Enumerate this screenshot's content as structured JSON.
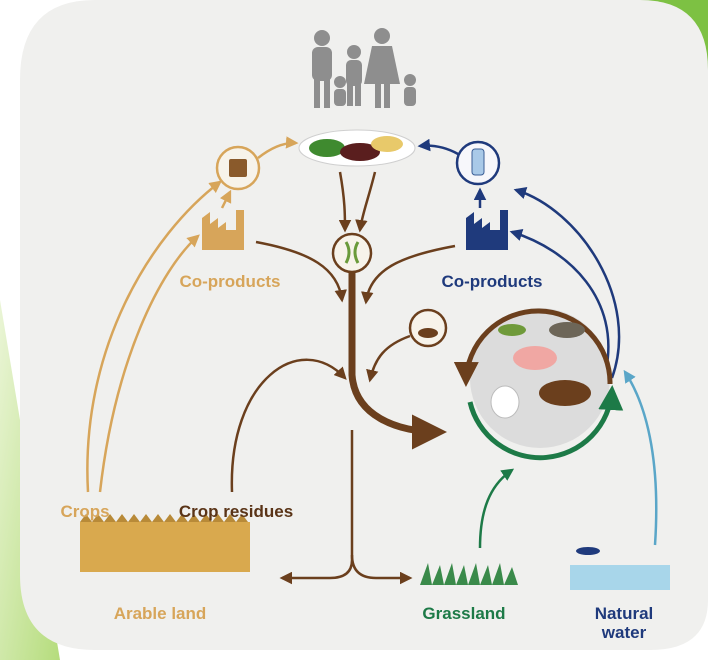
{
  "diagram": {
    "labels": {
      "co_products_left": "Co-products",
      "co_products_right": "Co-products",
      "crops": "Crops",
      "crop_residues": "Crop residues",
      "arable_land": "Arable land",
      "grassland": "Grassland",
      "natural_water": [
        "Natural",
        "water"
      ]
    }
  }
}
